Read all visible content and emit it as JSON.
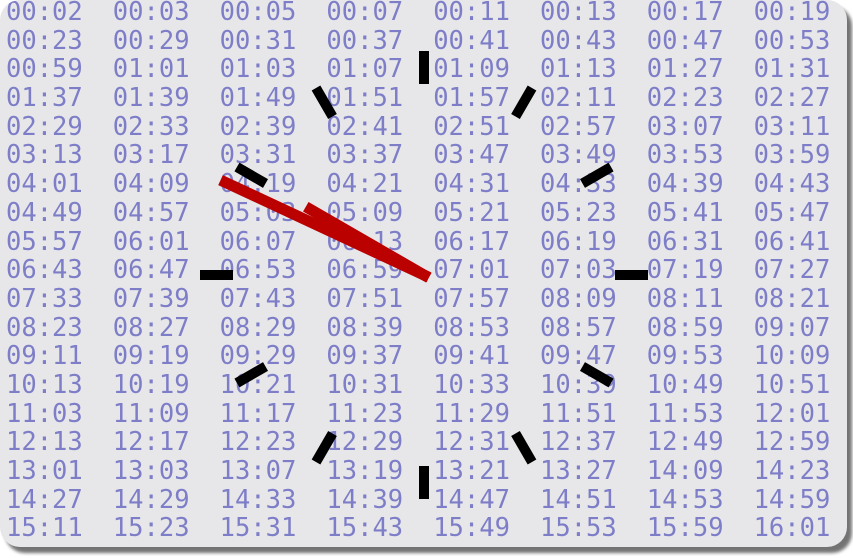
{
  "clock": {
    "hour": 9,
    "minute": 50,
    "colors": {
      "background": "#e7e7ea",
      "text": "#7e7ec8",
      "ticks": "#000000",
      "hands": "#bb0000"
    }
  },
  "times": [
    [
      "00:02",
      "00:03",
      "00:05",
      "00:07",
      "00:11",
      "00:13",
      "00:17",
      "00:19"
    ],
    [
      "00:23",
      "00:29",
      "00:31",
      "00:37",
      "00:41",
      "00:43",
      "00:47",
      "00:53"
    ],
    [
      "00:59",
      "01:01",
      "01:03",
      "01:07",
      "01:09",
      "01:13",
      "01:27",
      "01:31"
    ],
    [
      "01:37",
      "01:39",
      "01:49",
      "01:51",
      "01:57",
      "02:11",
      "02:23",
      "02:27"
    ],
    [
      "02:29",
      "02:33",
      "02:39",
      "02:41",
      "02:51",
      "02:57",
      "03:07",
      "03:11"
    ],
    [
      "03:13",
      "03:17",
      "03:31",
      "03:37",
      "03:47",
      "03:49",
      "03:53",
      "03:59"
    ],
    [
      "04:01",
      "04:09",
      "04:19",
      "04:21",
      "04:31",
      "04:33",
      "04:39",
      "04:43"
    ],
    [
      "04:49",
      "04:57",
      "05:03",
      "05:09",
      "05:21",
      "05:23",
      "05:41",
      "05:47"
    ],
    [
      "05:57",
      "06:01",
      "06:07",
      "06:13",
      "06:17",
      "06:19",
      "06:31",
      "06:41"
    ],
    [
      "06:43",
      "06:47",
      "06:53",
      "06:59",
      "07:01",
      "07:03",
      "07:19",
      "07:27"
    ],
    [
      "07:33",
      "07:39",
      "07:43",
      "07:51",
      "07:57",
      "08:09",
      "08:11",
      "08:21"
    ],
    [
      "08:23",
      "08:27",
      "08:29",
      "08:39",
      "08:53",
      "08:57",
      "08:59",
      "09:07"
    ],
    [
      "09:11",
      "09:19",
      "09:29",
      "09:37",
      "09:41",
      "09:47",
      "09:53",
      "10:09"
    ],
    [
      "10:13",
      "10:19",
      "10:21",
      "10:31",
      "10:33",
      "10:39",
      "10:49",
      "10:51"
    ],
    [
      "11:03",
      "11:09",
      "11:17",
      "11:23",
      "11:29",
      "11:51",
      "11:53",
      "12:01"
    ],
    [
      "12:13",
      "12:17",
      "12:23",
      "12:29",
      "12:31",
      "12:37",
      "12:49",
      "12:59"
    ],
    [
      "13:01",
      "13:03",
      "13:07",
      "13:19",
      "13:21",
      "13:27",
      "14:09",
      "14:23"
    ],
    [
      "14:27",
      "14:29",
      "14:33",
      "14:39",
      "14:47",
      "14:51",
      "14:53",
      "14:59"
    ],
    [
      "15:11",
      "15:23",
      "15:31",
      "15:43",
      "15:49",
      "15:53",
      "15:59",
      "16:01"
    ]
  ]
}
